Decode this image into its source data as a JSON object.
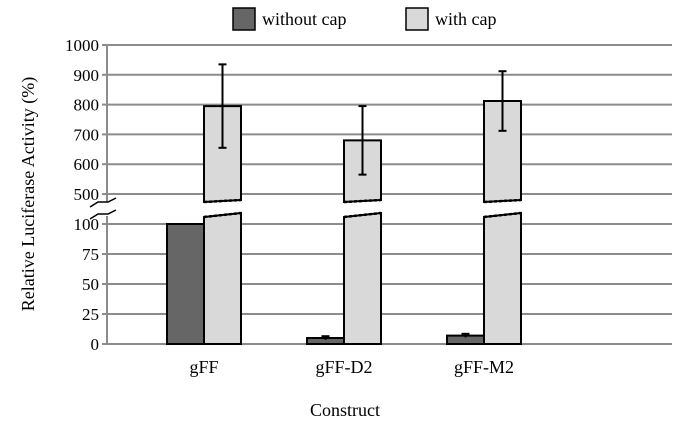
{
  "chart_data": {
    "type": "bar",
    "categories": [
      "gFF",
      "gFF-D2",
      "gFF-M2"
    ],
    "series": [
      {
        "name": "without cap",
        "values": [
          100,
          5,
          7
        ],
        "error": [
          0,
          1.5,
          1.5
        ],
        "color": "#666666"
      },
      {
        "name": "with cap",
        "values": [
          795,
          680,
          812
        ],
        "error": [
          140,
          115,
          100
        ],
        "color": "#d9d9d9"
      }
    ],
    "xlabel": "Construct",
    "ylabel": "Relative Luciferase Activity (%)",
    "y_axis_break": {
      "lower_range": [
        0,
        100
      ],
      "upper_range": [
        500,
        1000
      ]
    },
    "yticks_lower": [
      "0",
      "25",
      "50",
      "75",
      "100"
    ],
    "yticks_upper": [
      "500",
      "600",
      "700",
      "800",
      "900",
      "1000"
    ],
    "grid": true,
    "legend_position": "top",
    "colors": {
      "grid": "#8c8c8c",
      "bar_outline": "#000000"
    }
  }
}
